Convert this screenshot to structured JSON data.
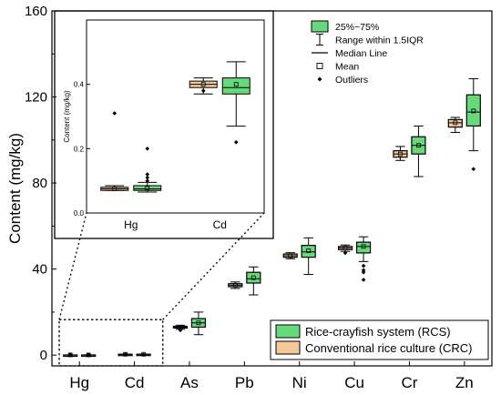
{
  "chart_data": {
    "type": "box",
    "ylabel": "Content (mg/kg)",
    "ylim": [
      -5,
      160
    ],
    "yticks": [
      0,
      40,
      80,
      120,
      160
    ],
    "categories": [
      "Hg",
      "Cd",
      "As",
      "Pb",
      "Ni",
      "Cu",
      "Cr",
      "Zn"
    ],
    "series": [
      {
        "name": "Conventional rice culture (CRC)",
        "color": "#f3c99a",
        "boxes": [
          {
            "cat": "Hg",
            "whislo": 0.07,
            "q1": 0.07,
            "med": 0.075,
            "q3": 0.08,
            "whishi": 0.085,
            "mean": 0.075,
            "fliers": [
              0.31
            ]
          },
          {
            "cat": "Cd",
            "whislo": 0.37,
            "q1": 0.39,
            "med": 0.4,
            "q3": 0.41,
            "whishi": 0.42,
            "mean": 0.4,
            "fliers": [
              0.38
            ]
          },
          {
            "cat": "As",
            "whislo": 12.0,
            "q1": 12.6,
            "med": 13.0,
            "q3": 13.4,
            "whishi": 13.9,
            "mean": 13.0,
            "fliers": [
              11.6
            ]
          },
          {
            "cat": "Pb",
            "whislo": 31.0,
            "q1": 31.8,
            "med": 32.5,
            "q3": 33.2,
            "whishi": 34.0,
            "mean": 32.5,
            "fliers": []
          },
          {
            "cat": "Ni",
            "whislo": 44.8,
            "q1": 45.5,
            "med": 46.2,
            "q3": 47.0,
            "whishi": 47.6,
            "mean": 46.2,
            "fliers": []
          },
          {
            "cat": "Cu",
            "whislo": 48.2,
            "q1": 49.0,
            "med": 49.8,
            "q3": 50.5,
            "whishi": 51.2,
            "mean": 49.8,
            "fliers": [
              47.5
            ]
          },
          {
            "cat": "Cr",
            "whislo": 90.5,
            "q1": 92.0,
            "med": 93.5,
            "q3": 95.0,
            "whishi": 97.0,
            "mean": 93.5,
            "fliers": []
          },
          {
            "cat": "Zn",
            "whislo": 103.5,
            "q1": 106.0,
            "med": 108.0,
            "q3": 109.5,
            "whishi": 110.5,
            "mean": 108.0,
            "fliers": []
          }
        ]
      },
      {
        "name": "Rice-crayfish system (RCS)",
        "color": "#66d97a",
        "boxes": [
          {
            "cat": "Hg",
            "whislo": 0.065,
            "q1": 0.07,
            "med": 0.075,
            "q3": 0.085,
            "whishi": 0.095,
            "mean": 0.077,
            "fliers": [
              0.2,
              0.12,
              0.11,
              0.1
            ]
          },
          {
            "cat": "Cd",
            "whislo": 0.27,
            "q1": 0.37,
            "med": 0.39,
            "q3": 0.42,
            "whishi": 0.47,
            "mean": 0.4,
            "fliers": [
              0.22
            ]
          },
          {
            "cat": "As",
            "whislo": 9.5,
            "q1": 13.0,
            "med": 15.0,
            "q3": 17.0,
            "whishi": 20.0,
            "mean": 15.0,
            "fliers": []
          },
          {
            "cat": "Pb",
            "whislo": 28.0,
            "q1": 33.5,
            "med": 35.5,
            "q3": 38.5,
            "whishi": 41.0,
            "mean": 36.0,
            "fliers": []
          },
          {
            "cat": "Ni",
            "whislo": 37.5,
            "q1": 45.5,
            "med": 48.0,
            "q3": 51.0,
            "whishi": 54.5,
            "mean": 48.5,
            "fliers": []
          },
          {
            "cat": "Cu",
            "whislo": 43.5,
            "q1": 47.5,
            "med": 50.5,
            "q3": 52.5,
            "whishi": 55.0,
            "mean": 50.5,
            "fliers": [
              41.5,
              39.5,
              38.5,
              35.0
            ]
          },
          {
            "cat": "Cr",
            "whislo": 83.0,
            "q1": 93.5,
            "med": 97.5,
            "q3": 101.5,
            "whishi": 106.5,
            "mean": 97.5,
            "fliers": []
          },
          {
            "cat": "Zn",
            "whislo": 95.0,
            "q1": 106.5,
            "med": 113.0,
            "q3": 121.0,
            "whishi": 128.5,
            "mean": 113.5,
            "fliers": [
              86.5
            ]
          }
        ]
      }
    ],
    "inset": {
      "ylabel": "Content (mg/kg)",
      "ylim": [
        0,
        0.6
      ],
      "yticks": [
        "0.0",
        "0.2",
        "0.4"
      ],
      "categories": [
        "Hg",
        "Cd"
      ]
    },
    "legend_box": {
      "items": [
        "25%~75%",
        "Range within 1.5IQR",
        "Median Line",
        "Mean",
        "Outliers"
      ]
    }
  }
}
